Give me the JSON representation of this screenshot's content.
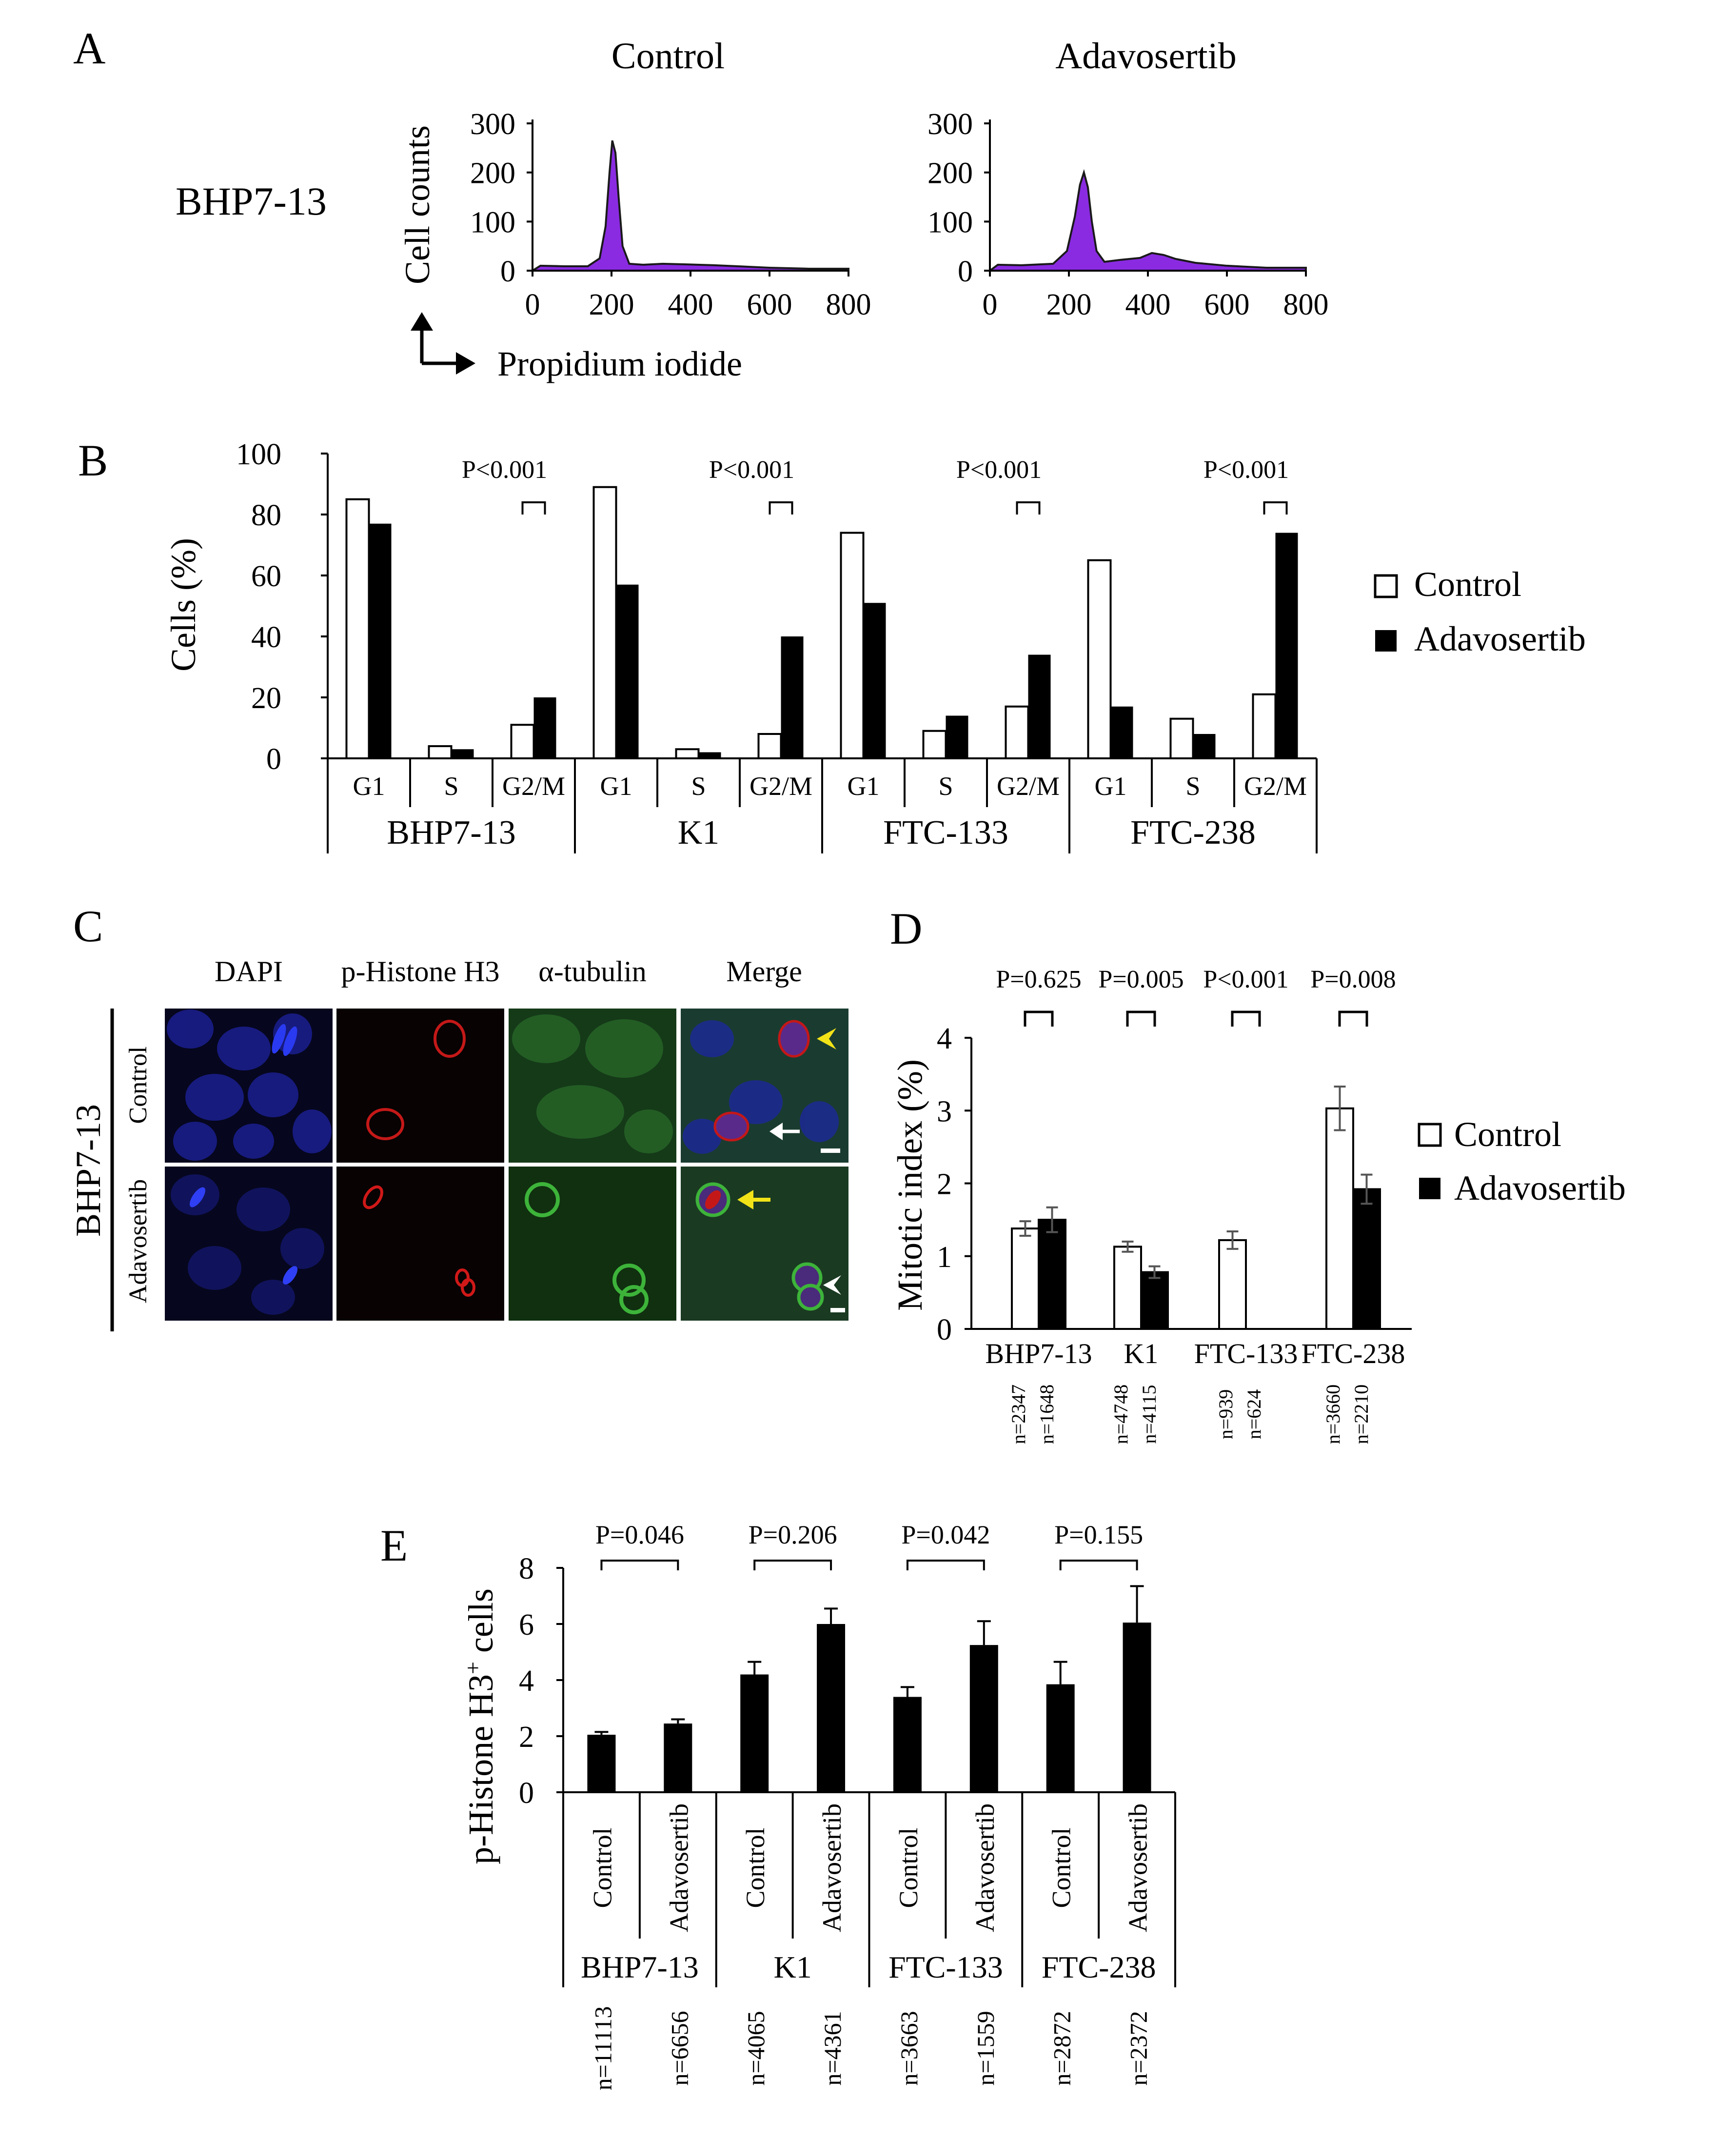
{
  "panels": {
    "A": {
      "letter": "A",
      "row_label": "BHP7-13",
      "ylabel": "Cell counts",
      "xlabel": "Propidium iodide",
      "fill_color": "#8a2be2",
      "chart_data": [
        {
          "type": "area",
          "title": "Control",
          "xlim": [
            0,
            800
          ],
          "ylim": [
            0,
            300
          ],
          "xticks": [
            0,
            200,
            400,
            600,
            800
          ],
          "yticks": [
            0,
            100,
            200,
            300
          ],
          "x": [
            0,
            20,
            80,
            140,
            170,
            185,
            195,
            202,
            210,
            218,
            228,
            245,
            280,
            330,
            380,
            420,
            460,
            520,
            600,
            700,
            800
          ],
          "y": [
            0,
            10,
            9,
            9,
            25,
            90,
            200,
            265,
            240,
            150,
            50,
            14,
            12,
            14,
            13,
            12,
            11,
            9,
            6,
            4,
            4
          ]
        },
        {
          "type": "area",
          "title": "Adavosertib",
          "xlim": [
            0,
            800
          ],
          "ylim": [
            0,
            300
          ],
          "xticks": [
            0,
            200,
            400,
            600,
            800
          ],
          "yticks": [
            0,
            100,
            200,
            300
          ],
          "x": [
            0,
            20,
            80,
            160,
            195,
            215,
            228,
            238,
            248,
            258,
            270,
            290,
            330,
            380,
            410,
            440,
            470,
            520,
            600,
            700,
            800
          ],
          "y": [
            0,
            12,
            11,
            14,
            40,
            110,
            175,
            200,
            170,
            100,
            40,
            18,
            22,
            26,
            36,
            32,
            24,
            16,
            10,
            6,
            6
          ]
        }
      ]
    },
    "B": {
      "letter": "B",
      "chart_data": {
        "type": "bar",
        "ylabel": "Cells (%)",
        "ylim": [
          0,
          100
        ],
        "yticks": [
          0,
          20,
          40,
          60,
          80,
          100
        ],
        "groups": [
          "BHP7-13",
          "K1",
          "FTC-133",
          "FTC-238"
        ],
        "phases": [
          "G1",
          "S",
          "G2/M"
        ],
        "series": [
          {
            "name": "Control",
            "values": [
              [
                85,
                4,
                11
              ],
              [
                89,
                3,
                8
              ],
              [
                74,
                9,
                17
              ],
              [
                65,
                13,
                21
              ]
            ]
          },
          {
            "name": "Adavosertib",
            "values": [
              [
                77,
                3,
                20
              ],
              [
                57,
                2,
                40
              ],
              [
                51,
                14,
                34
              ],
              [
                17,
                8,
                74
              ]
            ]
          }
        ],
        "p_values": [
          "P<0.001",
          "P<0.001",
          "P<0.001",
          "P<0.001"
        ],
        "legend_position": "right"
      }
    },
    "C": {
      "letter": "C",
      "columns": [
        "DAPI",
        "p-Histone H3",
        "α-tubulin",
        "Merge"
      ],
      "rows": [
        "Control",
        "Adavosertib"
      ],
      "cell_line": "BHP7-13"
    },
    "D": {
      "letter": "D",
      "chart_data": {
        "type": "bar",
        "ylabel": "Mitotic index (%)",
        "ylim": [
          0,
          4
        ],
        "yticks": [
          0,
          1,
          2,
          3,
          4
        ],
        "categories": [
          "BHP7-13",
          "K1",
          "FTC-133",
          "FTC-238"
        ],
        "series": [
          {
            "name": "Control",
            "values": [
              1.38,
              1.13,
              1.22,
              3.03
            ],
            "errors": [
              0.1,
              0.07,
              0.12,
              0.3
            ]
          },
          {
            "name": "Adavosertib",
            "values": [
              1.5,
              0.78,
              0.0,
              1.92
            ],
            "errors": [
              0.17,
              0.08,
              0.0,
              0.2
            ]
          }
        ],
        "p_values": [
          "P=0.625",
          "P=0.005",
          "P<0.001",
          "P=0.008"
        ],
        "n_labels": [
          [
            "n=2347",
            "n=1648"
          ],
          [
            "n=4748",
            "n=4115"
          ],
          [
            "n=939",
            "n=624"
          ],
          [
            "n=3660",
            "n=2210"
          ]
        ],
        "legend_position": "right"
      }
    },
    "E": {
      "letter": "E",
      "chart_data": {
        "type": "bar",
        "ylabel_main": "p-Histone H3",
        "ylabel_sup": "+",
        "ylabel_tail": " cells",
        "ylim": [
          0,
          8
        ],
        "yticks": [
          0,
          2,
          4,
          6,
          8
        ],
        "groups": [
          "BHP7-13",
          "K1",
          "FTC-133",
          "FTC-238"
        ],
        "conditions": [
          "Control",
          "Adavosertib"
        ],
        "values": [
          [
            2.05,
            2.45
          ],
          [
            4.2,
            6.0
          ],
          [
            3.4,
            5.25
          ],
          [
            3.85,
            6.05
          ]
        ],
        "errors": [
          [
            0.1,
            0.15
          ],
          [
            0.45,
            0.55
          ],
          [
            0.35,
            0.85
          ],
          [
            0.8,
            1.3
          ]
        ],
        "p_values": [
          "P=0.046",
          "P=0.206",
          "P=0.042",
          "P=0.155"
        ],
        "n_labels": [
          [
            "n=11113",
            "n=6656"
          ],
          [
            "n=4065",
            "n=4361"
          ],
          [
            "n=3663",
            "n=1559"
          ],
          [
            "n=2872",
            "n=2372"
          ]
        ]
      }
    }
  }
}
